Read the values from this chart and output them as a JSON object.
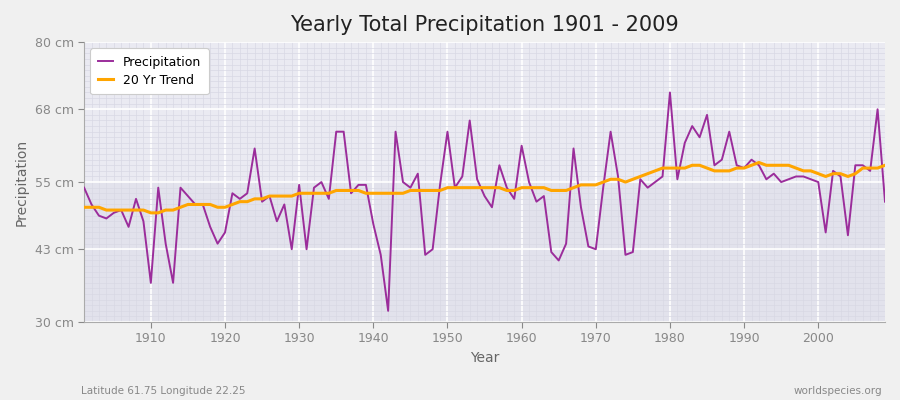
{
  "title": "Yearly Total Precipitation 1901 - 2009",
  "xlabel": "Year",
  "ylabel": "Precipitation",
  "subtitle": "Latitude 61.75 Longitude 22.25",
  "watermark": "worldspecies.org",
  "years": [
    1901,
    1902,
    1903,
    1904,
    1905,
    1906,
    1907,
    1908,
    1909,
    1910,
    1911,
    1912,
    1913,
    1914,
    1915,
    1916,
    1917,
    1918,
    1919,
    1920,
    1921,
    1922,
    1923,
    1924,
    1925,
    1926,
    1927,
    1928,
    1929,
    1930,
    1931,
    1932,
    1933,
    1934,
    1935,
    1936,
    1937,
    1938,
    1939,
    1940,
    1941,
    1942,
    1943,
    1944,
    1945,
    1946,
    1947,
    1948,
    1949,
    1950,
    1951,
    1952,
    1953,
    1954,
    1955,
    1956,
    1957,
    1958,
    1959,
    1960,
    1961,
    1962,
    1963,
    1964,
    1965,
    1966,
    1967,
    1968,
    1969,
    1970,
    1971,
    1972,
    1973,
    1974,
    1975,
    1976,
    1977,
    1978,
    1979,
    1980,
    1981,
    1982,
    1983,
    1984,
    1985,
    1986,
    1987,
    1988,
    1989,
    1990,
    1991,
    1992,
    1993,
    1994,
    1995,
    1996,
    1997,
    1998,
    1999,
    2000,
    2001,
    2002,
    2003,
    2004,
    2005,
    2006,
    2007,
    2008,
    2009
  ],
  "precip": [
    54.0,
    51.0,
    49.0,
    48.5,
    49.5,
    50.0,
    47.0,
    52.0,
    48.0,
    37.0,
    54.0,
    44.0,
    37.0,
    54.0,
    52.5,
    51.0,
    51.0,
    47.0,
    44.0,
    46.0,
    53.0,
    52.0,
    53.0,
    61.0,
    51.5,
    52.5,
    48.0,
    51.0,
    43.0,
    54.5,
    43.0,
    54.0,
    55.0,
    52.0,
    64.0,
    64.0,
    53.0,
    54.5,
    54.5,
    47.5,
    42.0,
    32.0,
    64.0,
    55.0,
    54.0,
    56.5,
    42.0,
    43.0,
    54.5,
    64.0,
    54.0,
    56.0,
    66.0,
    55.5,
    52.5,
    50.5,
    58.0,
    54.0,
    52.0,
    61.5,
    55.0,
    51.5,
    52.5,
    42.5,
    41.0,
    44.0,
    61.0,
    50.5,
    43.5,
    43.0,
    54.0,
    64.0,
    56.0,
    42.0,
    42.5,
    55.5,
    54.0,
    55.0,
    56.0,
    71.0,
    55.5,
    62.0,
    65.0,
    63.0,
    67.0,
    58.0,
    59.0,
    64.0,
    58.0,
    57.5,
    59.0,
    58.0,
    55.5,
    56.5,
    55.0,
    55.5,
    56.0,
    56.0,
    55.5,
    55.0,
    46.0,
    57.0,
    56.0,
    45.5,
    58.0,
    58.0,
    57.0,
    68.0,
    51.5
  ],
  "trend": [
    50.5,
    50.5,
    50.5,
    50.0,
    50.0,
    50.0,
    50.0,
    50.0,
    50.0,
    49.5,
    49.5,
    50.0,
    50.0,
    50.5,
    51.0,
    51.0,
    51.0,
    51.0,
    50.5,
    50.5,
    51.0,
    51.5,
    51.5,
    52.0,
    52.0,
    52.5,
    52.5,
    52.5,
    52.5,
    53.0,
    53.0,
    53.0,
    53.0,
    53.0,
    53.5,
    53.5,
    53.5,
    53.5,
    53.0,
    53.0,
    53.0,
    53.0,
    53.0,
    53.0,
    53.5,
    53.5,
    53.5,
    53.5,
    53.5,
    54.0,
    54.0,
    54.0,
    54.0,
    54.0,
    54.0,
    54.0,
    54.0,
    53.5,
    53.5,
    54.0,
    54.0,
    54.0,
    54.0,
    53.5,
    53.5,
    53.5,
    54.0,
    54.5,
    54.5,
    54.5,
    55.0,
    55.5,
    55.5,
    55.0,
    55.5,
    56.0,
    56.5,
    57.0,
    57.5,
    57.5,
    57.5,
    57.5,
    58.0,
    58.0,
    57.5,
    57.0,
    57.0,
    57.0,
    57.5,
    57.5,
    58.0,
    58.5,
    58.0,
    58.0,
    58.0,
    58.0,
    57.5,
    57.0,
    57.0,
    56.5,
    56.0,
    56.5,
    56.5,
    56.0,
    56.5,
    57.5,
    57.5,
    57.5,
    58.0
  ],
  "precip_color": "#9B2D9B",
  "trend_color": "#FFA500",
  "fig_bg_color": "#F0F0F0",
  "plot_bg_color_top": "#EAEAF0",
  "plot_bg_color_bottom": "#E0E0E8",
  "grid_color": "#FFFFFF",
  "grid_color_minor": "#D8D8E4",
  "ylim": [
    30,
    80
  ],
  "yticks": [
    30,
    43,
    55,
    68,
    80
  ],
  "ytick_labels": [
    "30 cm",
    "43 cm",
    "55 cm",
    "68 cm",
    "80 cm"
  ],
  "xticks": [
    1910,
    1920,
    1930,
    1940,
    1950,
    1960,
    1970,
    1980,
    1990,
    2000
  ],
  "title_fontsize": 15,
  "axis_label_fontsize": 10,
  "tick_fontsize": 9,
  "legend_fontsize": 9
}
